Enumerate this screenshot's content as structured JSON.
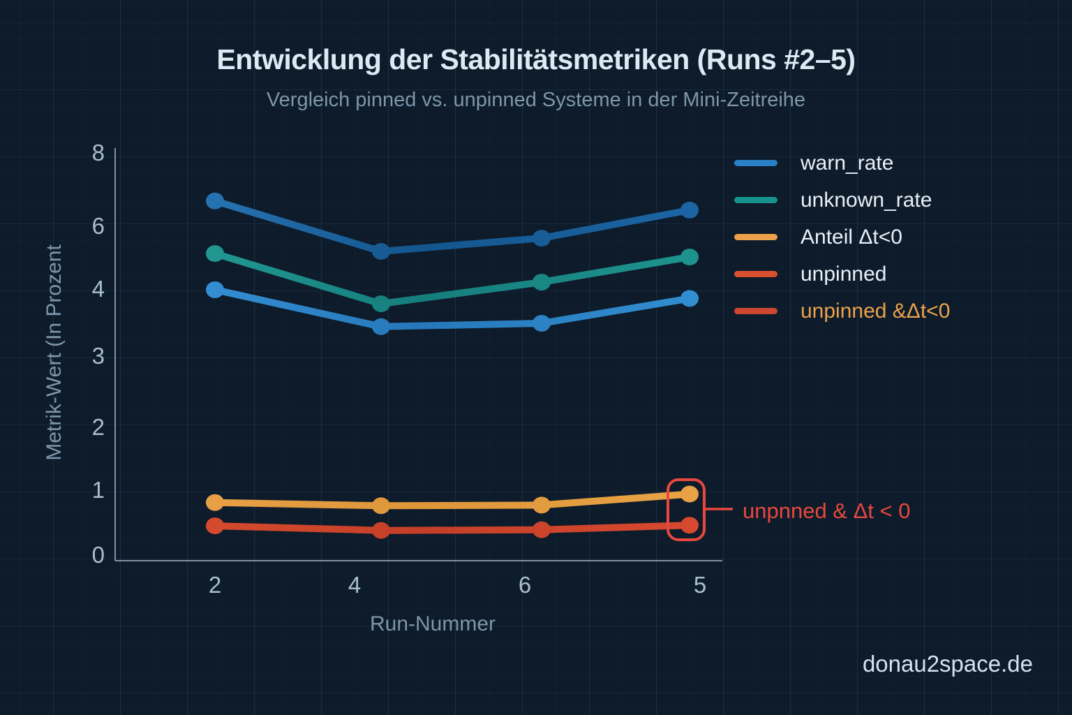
{
  "title": "Entwicklung der Stabilitätsmetriken (Runs #2–5)",
  "subtitle": "Vergleich pinned vs. unpinned Systeme in der Mini-Zeitreihe",
  "watermark": "donau2space.de",
  "colors": {
    "background": "#0d1b2a",
    "title": "#dceaf4",
    "subtitle": "#7e96ab",
    "tick_labels": "#a9bfcf",
    "axis_labels": "#7e96ab",
    "spine": "#93a9bb",
    "annotation_red": "#e8483e",
    "legend_amber_label": "#eda24b",
    "watermark": "#d3e4ef"
  },
  "axes": {
    "x_label": "Run-Nummer",
    "y_label": "Metrik-Wert (In Prozent",
    "x_ticks": [
      "2",
      "4",
      "6",
      "5"
    ],
    "y_ticks": [
      "8",
      "6",
      "4",
      "3",
      "2",
      "1",
      "0"
    ]
  },
  "legend": {
    "items": [
      {
        "label": "warn_rate",
        "swatch": "#2980c4",
        "label_color": "#e9f1f8"
      },
      {
        "label": "unknown_rate",
        "swatch": "#17928e",
        "label_color": "#e9f1f8"
      },
      {
        "label": "Anteil Δt<0",
        "swatch": "#eda04a",
        "label_color": "#e9f1f8"
      },
      {
        "label": "unpinned",
        "swatch": "#d9502e",
        "label_color": "#e9f1f8"
      },
      {
        "label": "unpinned &Δt<0",
        "swatch": "#cd4630",
        "label_color": "#eda24b"
      }
    ]
  },
  "annotation": {
    "text": "unpnned & Δt < 0",
    "encloses": "last data points of the two bottom series (run 5)"
  },
  "chart_data": {
    "type": "line",
    "x_categories": [
      "2",
      "4",
      "6",
      "5"
    ],
    "xlabel": "Run-Nummer",
    "ylabel": "Metrik-Wert (In Prozent",
    "ylim": [
      0,
      8
    ],
    "y_tick_labels": [
      8,
      6,
      4,
      3,
      2,
      1,
      0
    ],
    "grid": true,
    "legend_position": "upper right",
    "series": [
      {
        "name": "warn_rate",
        "values": [
          6.69,
          5.2,
          5.62,
          6.44
        ],
        "gradient": [
          "#2e7fc0",
          "#14568e",
          "#1d66a6"
        ]
      },
      {
        "name": "unknown_rate",
        "values": [
          5.13,
          3.78,
          4.22,
          5.02
        ],
        "gradient": [
          "#27a29b",
          "#157e7d",
          "#1f958f"
        ]
      },
      {
        "name": "unpinned",
        "values": [
          3.99,
          3.44,
          3.49,
          3.86
        ],
        "gradient": [
          "#3a97dc",
          "#2678ba",
          "#3390d3"
        ]
      },
      {
        "name": "Anteil Δt<0",
        "values": [
          0.81,
          0.76,
          0.77,
          0.94
        ],
        "gradient": [
          "#eda44d",
          "#dd9638",
          "#eaa347"
        ]
      },
      {
        "name": "unpinned & Δt<0",
        "values": [
          0.45,
          0.38,
          0.39,
          0.46
        ],
        "gradient": [
          "#dd4f31",
          "#c43f27",
          "#d94a31"
        ]
      }
    ]
  }
}
